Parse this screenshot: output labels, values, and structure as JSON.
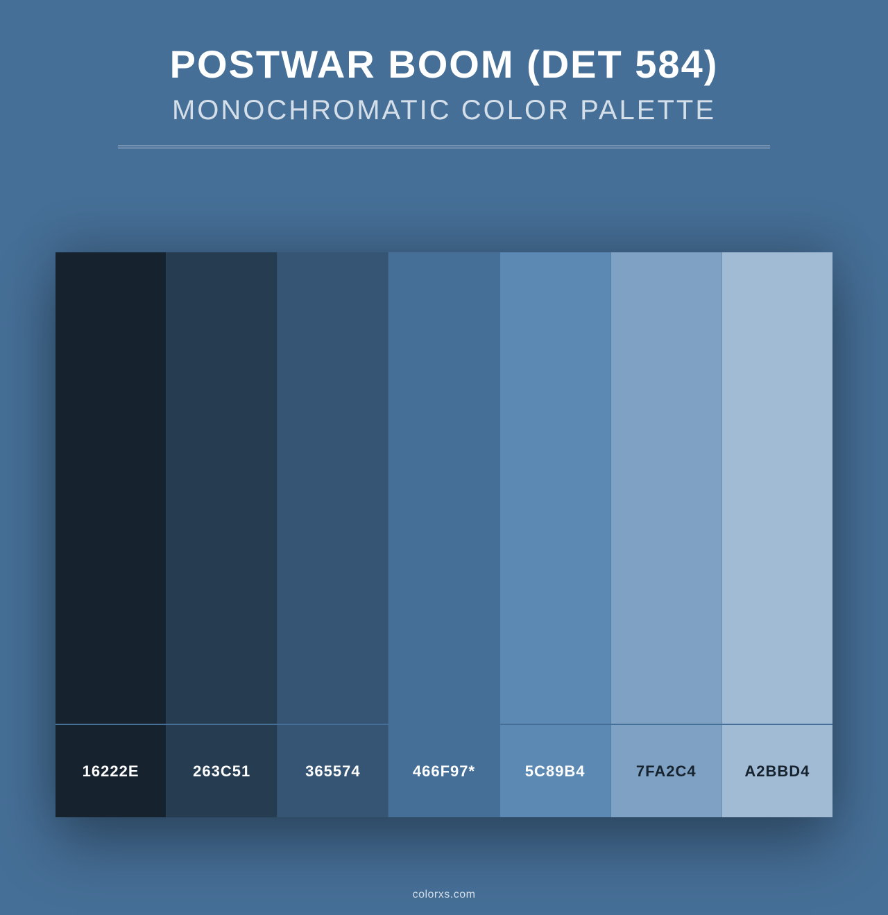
{
  "header": {
    "title": "POSTWAR BOOM (DET 584)",
    "subtitle": "MONOCHROMATIC COLOR PALETTE",
    "title_color": "#ffffff",
    "subtitle_color": "#d4dfe9",
    "title_fontsize": 56,
    "subtitle_fontsize": 40,
    "divider_color": "#b8c8d8"
  },
  "background_color": "#466f97",
  "palette": {
    "type": "color-swatches",
    "swatches": [
      {
        "hex": "#16222e",
        "label": "16222E",
        "label_color": "#ffffff"
      },
      {
        "hex": "#263c51",
        "label": "263C51",
        "label_color": "#ffffff"
      },
      {
        "hex": "#365574",
        "label": "365574",
        "label_color": "#ffffff"
      },
      {
        "hex": "#466f97",
        "label": "466F97*",
        "label_color": "#ffffff"
      },
      {
        "hex": "#5c89b4",
        "label": "5C89B4",
        "label_color": "#ffffff"
      },
      {
        "hex": "#7fa2c4",
        "label": "7FA2C4",
        "label_color": "#16222e"
      },
      {
        "hex": "#a2bbd4",
        "label": "A2BBD4",
        "label_color": "#16222e"
      }
    ],
    "swatch_height": 680,
    "label_height": 135,
    "container_width": 1120
  },
  "footer": {
    "text": "colorxs.com",
    "color": "#d4dfe9"
  }
}
